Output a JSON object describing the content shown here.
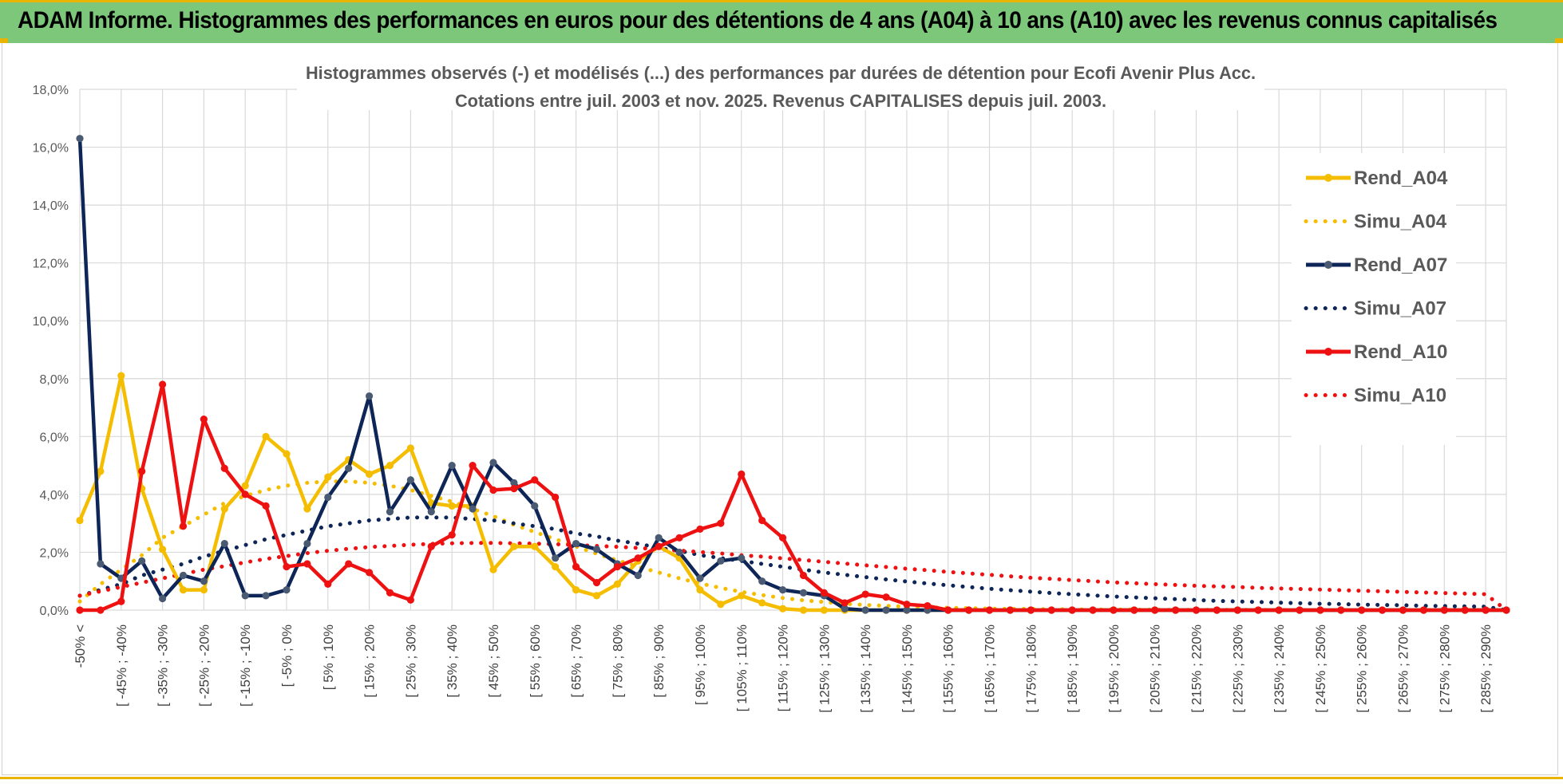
{
  "banner": {
    "title": "ADAM Informe. Histogrammes des performances en euros pour des détentions de 4 ans (A04) à 10 ans (A10) avec les revenus connus capitalisés"
  },
  "colors": {
    "banner_bg": "#7cc77a",
    "corner_accent": "#e8b400",
    "A04": "#f5bd00",
    "A07": "#0d2557",
    "A07_marker": "#4a5a72",
    "A10": "#ee1111",
    "grid": "#d9d9d9"
  },
  "chart_data": {
    "type": "line",
    "title_line1": "Histogrammes observés (-) et modélisés (...) des performances par durées de détention pour Ecofi Avenir Plus Acc.",
    "title_line2": "Cotations entre juil. 2003 et nov. 2025. Revenus CAPITALISES depuis juil. 2003.",
    "xlabel": "",
    "ylabel": "",
    "ylim": [
      0,
      18
    ],
    "yticks": [
      "0,0%",
      "2,0%",
      "4,0%",
      "6,0%",
      "8,0%",
      "10,0%",
      "12,0%",
      "14,0%",
      "16,0%",
      "18,0%"
    ],
    "grid": true,
    "legend_position": "right",
    "x_count": 70,
    "tick_labels": [
      "-50% <",
      "[ -45% ; -40%",
      "[ -35% ; -30%",
      "[ -25% ; -20%",
      "[ -15% ; -10%",
      "[ -5% ; 0%",
      "[ 5% ; 10%",
      "[ 15% ; 20%",
      "[ 25% ; 30%",
      "[ 35% ; 40%",
      "[ 45% ; 50%",
      "[ 55% ; 60%",
      "[ 65% ; 70%",
      "[ 75% ; 80%",
      "[ 85% ; 90%",
      "[ 95% ; 100%",
      "[ 105% ; 110%",
      "[ 115% ; 120%",
      "[ 125% ; 130%",
      "[ 135% ; 140%",
      "[ 145% ; 150%",
      "[ 155% ; 160%",
      "[ 165% ; 170%",
      "[ 175% ; 180%",
      "[ 185% ; 190%",
      "[ 195% ; 200%",
      "[ 205% ; 210%",
      "[ 215% ; 220%",
      "[ 225% ; 230%",
      "[ 235% ; 240%",
      "[ 245% ; 250%",
      "[ 255% ; 260%",
      "[ 265% ; 270%",
      "[ 275% ; 280%",
      "[ 285% ; 290%"
    ],
    "tick_label_every": 2,
    "series": [
      {
        "name": "Rend_A04",
        "style": "solid",
        "color": "#f5bd00",
        "values": [
          3.1,
          4.8,
          8.1,
          4.2,
          2.1,
          0.7,
          0.7,
          3.5,
          4.3,
          6.0,
          5.4,
          3.5,
          4.6,
          5.2,
          4.7,
          5.0,
          5.6,
          3.7,
          3.6,
          3.6,
          1.4,
          2.2,
          2.2,
          1.5,
          0.7,
          0.5,
          0.9,
          1.7,
          2.2,
          1.8,
          0.7,
          0.2,
          0.5,
          0.25,
          0.05,
          0.0,
          0.0,
          0.0,
          0.0,
          0.0,
          0.0,
          0.0,
          0.0,
          0.0,
          0.0,
          0.0,
          0.0,
          0.0,
          0.0,
          0.0,
          0.0,
          0.0,
          0.0,
          0.0,
          0.0,
          0.0,
          0.0,
          0.0,
          0.0,
          0.0,
          0.0,
          0.0,
          0.0,
          0.0,
          0.0,
          0.0,
          0.0,
          0.0,
          0.0,
          0.0
        ]
      },
      {
        "name": "Simu_A04",
        "style": "dotted",
        "color": "#f5bd00",
        "values": [
          0.3,
          0.9,
          1.4,
          1.9,
          2.5,
          2.9,
          3.3,
          3.7,
          3.95,
          4.15,
          4.3,
          4.4,
          4.45,
          4.45,
          4.4,
          4.3,
          4.15,
          3.95,
          3.75,
          3.5,
          3.25,
          2.95,
          2.7,
          2.45,
          2.2,
          1.95,
          1.72,
          1.5,
          1.3,
          1.1,
          0.92,
          0.77,
          0.63,
          0.52,
          0.42,
          0.34,
          0.28,
          0.22,
          0.18,
          0.15,
          0.12,
          0.1,
          0.08,
          0.07,
          0.05,
          0.04,
          0.04,
          0.03,
          0.03,
          0.02,
          0.02,
          0.02,
          0.01,
          0.01,
          0.01,
          0.01,
          0.01,
          0.01,
          0.0,
          0.0,
          0.0,
          0.0,
          0.0,
          0.0,
          0.0,
          0.0,
          0.0,
          0.0,
          0.0,
          0.0
        ]
      },
      {
        "name": "Rend_A07",
        "style": "solid",
        "color": "#0d2557",
        "values": [
          16.3,
          1.6,
          1.1,
          1.7,
          0.4,
          1.2,
          1.0,
          2.3,
          0.5,
          0.5,
          0.7,
          2.3,
          3.9,
          4.9,
          7.4,
          3.4,
          4.5,
          3.4,
          5.0,
          3.5,
          5.1,
          4.4,
          3.6,
          1.8,
          2.3,
          2.1,
          1.6,
          1.2,
          2.5,
          2.0,
          1.1,
          1.7,
          1.8,
          1.0,
          0.7,
          0.6,
          0.5,
          0.05,
          0.0,
          0.0,
          0.0,
          0.0,
          0.0,
          0.0,
          0.0,
          0.0,
          0.0,
          0.0,
          0.0,
          0.0,
          0.0,
          0.0,
          0.0,
          0.0,
          0.0,
          0.0,
          0.0,
          0.0,
          0.0,
          0.0,
          0.0,
          0.0,
          0.0,
          0.0,
          0.0,
          0.0,
          0.0,
          0.0,
          0.0,
          0.0
        ]
      },
      {
        "name": "Simu_A07",
        "style": "dotted",
        "color": "#0d2557",
        "values": [
          0.5,
          0.7,
          0.9,
          1.2,
          1.4,
          1.6,
          1.85,
          2.05,
          2.25,
          2.45,
          2.6,
          2.75,
          2.9,
          3.0,
          3.1,
          3.15,
          3.2,
          3.2,
          3.2,
          3.15,
          3.1,
          3.0,
          2.9,
          2.8,
          2.65,
          2.55,
          2.4,
          2.3,
          2.15,
          2.05,
          1.9,
          1.8,
          1.7,
          1.6,
          1.5,
          1.4,
          1.3,
          1.22,
          1.14,
          1.06,
          0.99,
          0.92,
          0.86,
          0.8,
          0.74,
          0.69,
          0.64,
          0.59,
          0.55,
          0.51,
          0.47,
          0.44,
          0.41,
          0.38,
          0.35,
          0.32,
          0.3,
          0.28,
          0.26,
          0.24,
          0.22,
          0.21,
          0.19,
          0.18,
          0.17,
          0.15,
          0.14,
          0.13,
          0.12,
          0.0
        ]
      },
      {
        "name": "Rend_A10",
        "style": "solid",
        "color": "#ee1111",
        "values": [
          0.0,
          0.0,
          0.3,
          4.8,
          7.8,
          2.9,
          6.6,
          4.9,
          4.0,
          3.6,
          1.5,
          1.6,
          0.9,
          1.6,
          1.3,
          0.6,
          0.35,
          2.2,
          2.6,
          5.0,
          4.15,
          4.2,
          4.5,
          3.9,
          1.5,
          0.95,
          1.5,
          1.8,
          2.2,
          2.5,
          2.8,
          3.0,
          4.7,
          3.1,
          2.5,
          1.2,
          0.6,
          0.25,
          0.55,
          0.45,
          0.2,
          0.15,
          0.0,
          0.0,
          0.0,
          0.0,
          0.0,
          0.0,
          0.0,
          0.0,
          0.0,
          0.0,
          0.0,
          0.0,
          0.0,
          0.0,
          0.0,
          0.0,
          0.0,
          0.0,
          0.0,
          0.0,
          0.0,
          0.0,
          0.0,
          0.0,
          0.0,
          0.0,
          0.0,
          0.0
        ]
      },
      {
        "name": "Simu_A10",
        "style": "dotted",
        "color": "#ee1111",
        "values": [
          0.5,
          0.65,
          0.8,
          0.95,
          1.1,
          1.25,
          1.4,
          1.52,
          1.65,
          1.77,
          1.87,
          1.97,
          2.05,
          2.12,
          2.18,
          2.22,
          2.26,
          2.29,
          2.31,
          2.32,
          2.32,
          2.31,
          2.3,
          2.28,
          2.25,
          2.22,
          2.19,
          2.15,
          2.1,
          2.06,
          2.01,
          1.96,
          1.9,
          1.85,
          1.79,
          1.73,
          1.67,
          1.61,
          1.55,
          1.49,
          1.43,
          1.38,
          1.32,
          1.27,
          1.22,
          1.17,
          1.12,
          1.08,
          1.04,
          1.0,
          0.96,
          0.93,
          0.9,
          0.87,
          0.84,
          0.82,
          0.8,
          0.77,
          0.75,
          0.73,
          0.71,
          0.69,
          0.67,
          0.65,
          0.63,
          0.61,
          0.59,
          0.57,
          0.55,
          0.0
        ]
      }
    ]
  }
}
